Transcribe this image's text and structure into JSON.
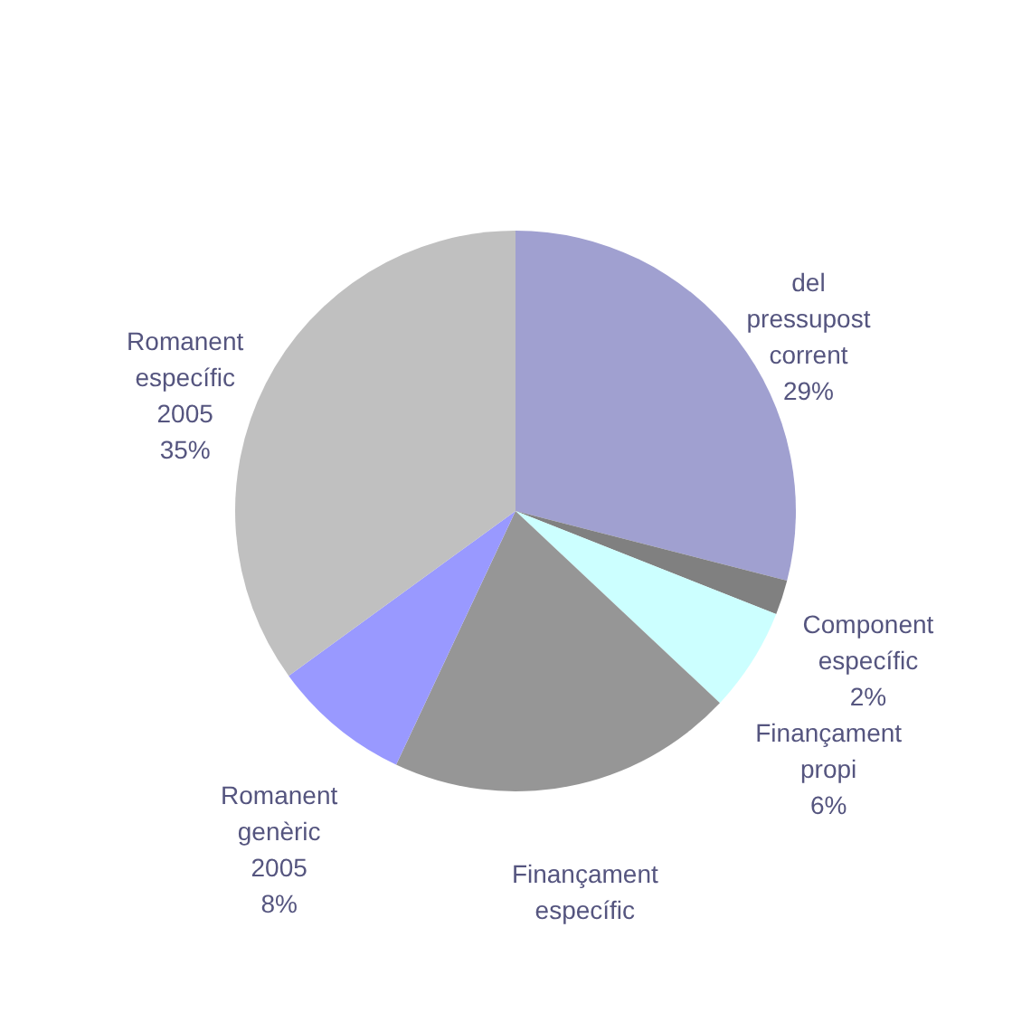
{
  "chart_data": {
    "type": "pie",
    "categories": [
      "del pressupost corrent",
      "Component específic",
      "Finançament propi",
      "Finançament específic",
      "Romanent genèric 2005",
      "Romanent específic 2005"
    ],
    "values": [
      29,
      2,
      6,
      20,
      8,
      35
    ],
    "value_labels": [
      "29%",
      "2%",
      "6%",
      null,
      "8%",
      "35%"
    ],
    "colors": [
      "#a0a0d0",
      "#808080",
      "#ccffff",
      "#969696",
      "#9999ff",
      "#c0c0c0"
    ],
    "legend": false
  }
}
